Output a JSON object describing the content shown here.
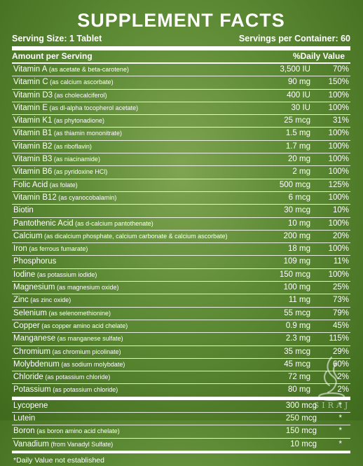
{
  "title": "SUPPLEMENT FACTS",
  "serving_size": "Serving Size: 1 Tablet",
  "servings_per_container": "Servings per Container: 60",
  "header_left": "Amount per Serving",
  "header_right": "%Daily Value",
  "nutrients": [
    {
      "name": "Vitamin A",
      "sub": " (as acetate & beta-carotene)",
      "amount": "3,500 IU",
      "dv": "70%"
    },
    {
      "name": "Vitamin C",
      "sub": " (as calcium ascorbate)",
      "amount": "90 mg",
      "dv": "150%"
    },
    {
      "name": "Vitamin D3",
      "sub": " (as cholecalciferol)",
      "amount": "400 IU",
      "dv": "100%"
    },
    {
      "name": "Vitamin E",
      "sub": " (as dl-alpha tocopherol acetate)",
      "amount": "30 IU",
      "dv": "100%"
    },
    {
      "name": "Vitamin K1",
      "sub": " (as phytonadione)",
      "amount": "25 mcg",
      "dv": "31%"
    },
    {
      "name": "Vitamin B1",
      "sub": " (as thiamin mononitrate)",
      "amount": "1.5 mg",
      "dv": "100%"
    },
    {
      "name": "Vitamin B2",
      "sub": " (as riboflavin)",
      "amount": "1.7 mg",
      "dv": "100%"
    },
    {
      "name": "Vitamin B3",
      "sub": " (as niacinamide)",
      "amount": "20 mg",
      "dv": "100%"
    },
    {
      "name": "Vitamin B6",
      "sub": " (as pyridoxine HCl)",
      "amount": "2 mg",
      "dv": "100%"
    },
    {
      "name": "Folic Acid",
      "sub": " (as folate)",
      "amount": "500 mcg",
      "dv": "125%"
    },
    {
      "name": "Vitamin B12",
      "sub": " (as cyanocobalamin)",
      "amount": "6 mcg",
      "dv": "100%"
    },
    {
      "name": "Biotin",
      "sub": "",
      "amount": "30 mcg",
      "dv": "10%"
    },
    {
      "name": "Pantothenic Acid",
      "sub": " (as d-calcium pantothenate)",
      "amount": "10 mg",
      "dv": "100%"
    },
    {
      "name": "Calcium",
      "sub": " (as dicalcium phosphate, calcium carbonate & calcium ascorbate)",
      "amount": "200 mg",
      "dv": "20%"
    },
    {
      "name": "Iron",
      "sub": " (as ferrous fumarate)",
      "amount": "18 mg",
      "dv": "100%"
    },
    {
      "name": "Phosphorus",
      "sub": "",
      "amount": "109 mg",
      "dv": "11%"
    },
    {
      "name": "Iodine",
      "sub": " (as potassium iodide)",
      "amount": "150 mcg",
      "dv": "100%"
    },
    {
      "name": "Magnesium",
      "sub": " (as magnesium oxide)",
      "amount": "100 mg",
      "dv": "25%"
    },
    {
      "name": "Zinc",
      "sub": " (as zinc oxide)",
      "amount": "11 mg",
      "dv": "73%"
    },
    {
      "name": "Selenium",
      "sub": " (as selenomethionine)",
      "amount": "55 mcg",
      "dv": "79%"
    },
    {
      "name": "Copper",
      "sub": " (as copper amino acid chelate)",
      "amount": "0.9 mg",
      "dv": "45%"
    },
    {
      "name": "Manganese",
      "sub": " (as manganese sulfate)",
      "amount": "2.3 mg",
      "dv": "115%"
    },
    {
      "name": "Chromium",
      "sub": " (as chromium picolinate)",
      "amount": "35 mcg",
      "dv": "29%"
    },
    {
      "name": "Molybdenum",
      "sub": " (as sodium molybdate)",
      "amount": "45 mcg",
      "dv": "60%"
    },
    {
      "name": "Chloride",
      "sub": " (as potassium chloride)",
      "amount": "72 mg",
      "dv": "2%"
    },
    {
      "name": "Potassium",
      "sub": " (as potassium chloride)",
      "amount": "80 mg",
      "dv": "2%"
    }
  ],
  "others": [
    {
      "name": "Lycopene",
      "sub": "",
      "amount": "300 mcg",
      "dv": "*"
    },
    {
      "name": "Lutein",
      "sub": "",
      "amount": "250 mcg",
      "dv": "*"
    },
    {
      "name": "Boron",
      "sub": " (as boron amino acid chelate)",
      "amount": "150 mcg",
      "dv": "*"
    },
    {
      "name": "Vanadium",
      "sub": " (from Vanadyl Sulfate)",
      "amount": "10 mcg",
      "dv": "*"
    }
  ],
  "footnote": "*Daily Value not established",
  "watermark": {
    "text": "SIRAJ",
    "icon": "flame-logo-icon"
  }
}
